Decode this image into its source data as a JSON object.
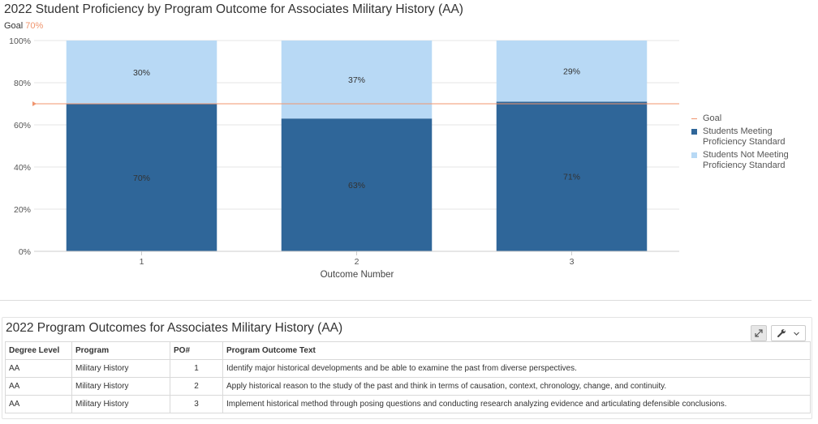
{
  "chart_data": {
    "type": "bar",
    "stacked": true,
    "title": "2022 Student Proficiency by Program Outcome for Associates Military History (AA)",
    "goal_label": "Goal",
    "goal_value_label": "70%",
    "goal": 70,
    "categories": [
      "1",
      "2",
      "3"
    ],
    "series": [
      {
        "name": "Students Meeting Proficiency Standard",
        "values": [
          70,
          63,
          71
        ],
        "labels": [
          "70%",
          "63%",
          "71%"
        ],
        "color": "#2f6699"
      },
      {
        "name": "Students Not Meeting Proficiency Standard",
        "values": [
          30,
          37,
          29
        ],
        "labels": [
          "30%",
          "37%",
          "29%"
        ],
        "color": "#b8d9f5"
      }
    ],
    "goal_color": "#f0956e",
    "xlabel": "Outcome Number",
    "ylabel": "",
    "ylim": [
      0,
      100
    ],
    "yticks": [
      0,
      20,
      40,
      60,
      80,
      100
    ],
    "ytick_labels": [
      "0%",
      "20%",
      "40%",
      "60%",
      "80%",
      "100%"
    ],
    "legend": {
      "position": "right",
      "items": [
        "Goal",
        "Students Meeting Proficiency Standard",
        "Students Not Meeting Proficiency Standard"
      ]
    },
    "grid": true
  },
  "legend_lines": {
    "goal": [
      "Goal"
    ],
    "meeting": [
      "Students Meeting",
      "Proficiency Standard"
    ],
    "not_meeting": [
      "Students Not Meeting",
      "Proficiency Standard"
    ]
  },
  "table_panel": {
    "title": "2022 Program Outcomes for Associates Military History (AA)",
    "icons": {
      "expand": "expand-icon",
      "tools": "wrench-icon",
      "dropdown": "chevron-down-icon"
    },
    "columns": [
      "Degree Level",
      "Program",
      "PO#",
      "Program Outcome Text"
    ],
    "rows": [
      [
        "AA",
        "Military History",
        "1",
        "Identify major historical developments and be able to examine the past from diverse perspectives."
      ],
      [
        "AA",
        "Military History",
        "2",
        "Apply historical reason to the study of the past and think in terms of causation, context, chronology, change, and continuity."
      ],
      [
        "AA",
        "Military History",
        "3",
        "Implement historical method through posing questions and conducting research analyzing evidence and articulating defensible conclusions."
      ]
    ]
  }
}
